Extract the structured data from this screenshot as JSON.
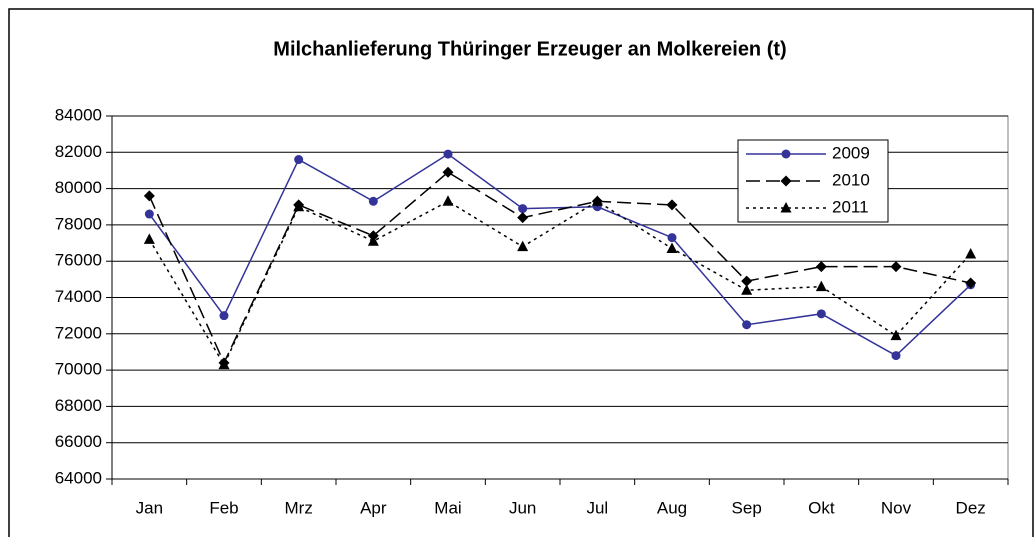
{
  "chart_data": {
    "type": "line",
    "title": "Milchanlieferung Thüringer Erzeuger an Molkereien (t)",
    "categories": [
      "Jan",
      "Feb",
      "Mrz",
      "Apr",
      "Mai",
      "Jun",
      "Jul",
      "Aug",
      "Sep",
      "Okt",
      "Nov",
      "Dez"
    ],
    "series": [
      {
        "name": "2009",
        "color": "#333399",
        "dash": "none",
        "marker": "circle",
        "values": [
          78600,
          73000,
          81600,
          79300,
          81900,
          78900,
          79000,
          77300,
          72500,
          73100,
          70800,
          74700
        ]
      },
      {
        "name": "2010",
        "color": "#000000",
        "dash": "14,6",
        "marker": "diamond",
        "values": [
          79600,
          70400,
          79100,
          77400,
          80900,
          78400,
          79300,
          79100,
          74900,
          75700,
          75700,
          74800
        ]
      },
      {
        "name": "2011",
        "color": "#000000",
        "dash": "3,4",
        "marker": "triangle",
        "values": [
          77200,
          70300,
          79000,
          77100,
          79300,
          76800,
          79300,
          76700,
          74400,
          74600,
          71900,
          76400
        ]
      }
    ],
    "ylim": [
      64000,
      84000
    ],
    "yticks": [
      64000,
      66000,
      68000,
      70000,
      72000,
      74000,
      76000,
      78000,
      80000,
      82000,
      84000
    ],
    "grid": true,
    "legend": "top-right"
  }
}
